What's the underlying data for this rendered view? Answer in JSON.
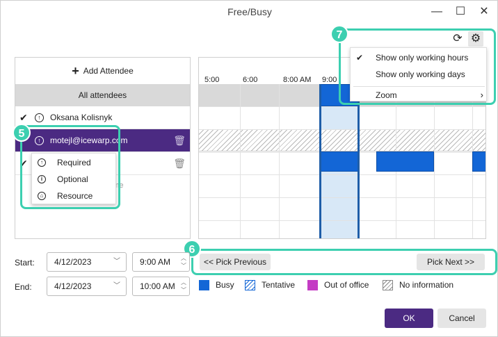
{
  "window": {
    "title": "Free/Busy",
    "min_glyph": "—",
    "max_glyph": "☐",
    "close_glyph": "✕"
  },
  "attendees": {
    "add_label": "Add Attendee",
    "all_label": "All attendees",
    "rows": [
      {
        "name": "Oksana Kolisnyk",
        "checked": true,
        "role_icon": "arrow-up-circle-icon"
      },
      {
        "name": "motejl@icewarp.com",
        "checked": false,
        "selected": true,
        "role_icon": "arrow-up-circle-icon"
      },
      {
        "name": "",
        "checked": true,
        "role_icon": "arrow-up-circle-icon"
      }
    ],
    "placeholder": "name"
  },
  "role_menu": {
    "items": [
      {
        "label": "Required",
        "icon": "arrow-up-circle-icon"
      },
      {
        "label": "Optional",
        "icon": "info-circle-icon"
      },
      {
        "label": "Resource",
        "icon": "home-circle-icon"
      }
    ]
  },
  "grid": {
    "hours": [
      "5:00",
      "6:00",
      "8:00 AM",
      "9:00"
    ]
  },
  "settings_menu": {
    "items": [
      {
        "label": "Show only working hours",
        "checked": true
      },
      {
        "label": "Show only working days",
        "checked": false
      },
      {
        "label": "Zoom",
        "submenu": true
      }
    ]
  },
  "callouts": {
    "c5": "5",
    "c6": "6",
    "c7": "7"
  },
  "nav": {
    "previous": "<< Pick Previous",
    "next": "Pick Next >>"
  },
  "start": {
    "label": "Start:",
    "date": "4/12/2023",
    "time": "9:00 AM"
  },
  "end": {
    "label": "End:",
    "date": "4/12/2023",
    "time": "10:00 AM"
  },
  "legend": [
    {
      "label": "Busy",
      "color": "#1366d6"
    },
    {
      "label": "Tentative",
      "color": "#1366d6"
    },
    {
      "label": "Out of office",
      "color": "#c43cc4"
    },
    {
      "label": "No information",
      "color": "#888888"
    }
  ],
  "buttons": {
    "ok": "OK",
    "cancel": "Cancel"
  },
  "colors": {
    "accent": "#4b2a82",
    "callout": "#3ccfb0",
    "busy": "#1366d6",
    "selection": "#d8e8f7"
  }
}
